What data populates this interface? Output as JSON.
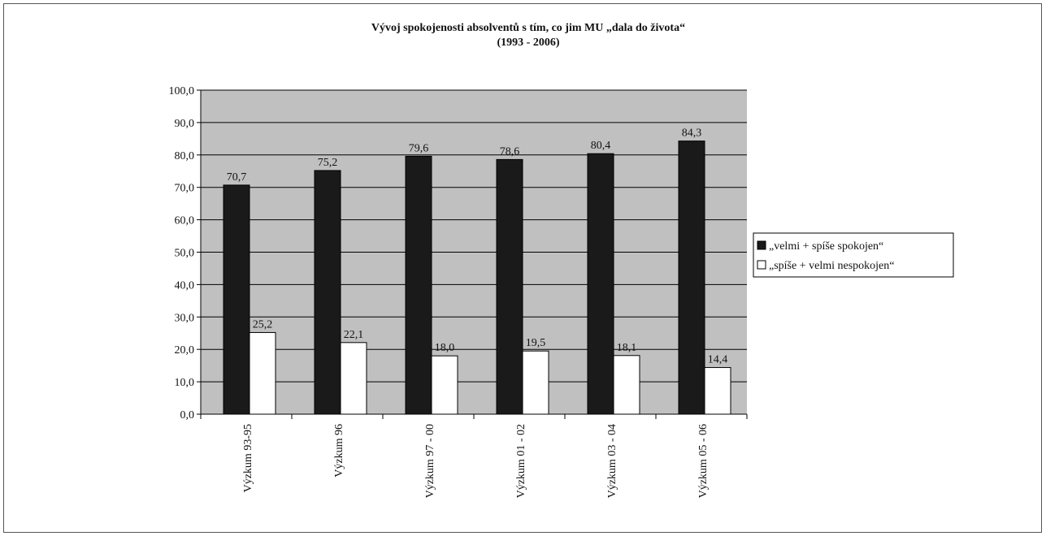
{
  "chart_data": {
    "type": "bar",
    "title": "Vývoj spokojenosti absolventů s tím, co jim MU „dala do života“",
    "subtitle": "(1993 - 2006)",
    "categories": [
      "Výzkum 93-95",
      "Výzkum 96",
      "Výzkum 97 - 00",
      "Výzkum 01 - 02",
      "Výzkum 03 - 04",
      "Výzkum 05 - 06"
    ],
    "series": [
      {
        "name": "„velmi + spíše spokojen“",
        "color": "#1a1a1a",
        "values": [
          70.7,
          75.2,
          79.6,
          78.6,
          80.4,
          84.3
        ]
      },
      {
        "name": "„spíše + velmi nespokojen“",
        "color": "#ffffff",
        "values": [
          25.2,
          22.1,
          18.0,
          19.5,
          18.1,
          14.4
        ]
      }
    ],
    "ylim": [
      0,
      100
    ],
    "yticks": [
      "0,0",
      "10,0",
      "20,0",
      "30,0",
      "40,0",
      "50,0",
      "60,0",
      "70,0",
      "80,0",
      "90,0",
      "100,0"
    ],
    "value_labels": [
      [
        "70,7",
        "75,2",
        "79,6",
        "78,6",
        "80,4",
        "84,3"
      ],
      [
        "25,2",
        "22,1",
        "18,0",
        "19,5",
        "18,1",
        "14,4"
      ]
    ],
    "grid": true,
    "plot_background": "#c0c0c0",
    "legend_position": "right"
  }
}
